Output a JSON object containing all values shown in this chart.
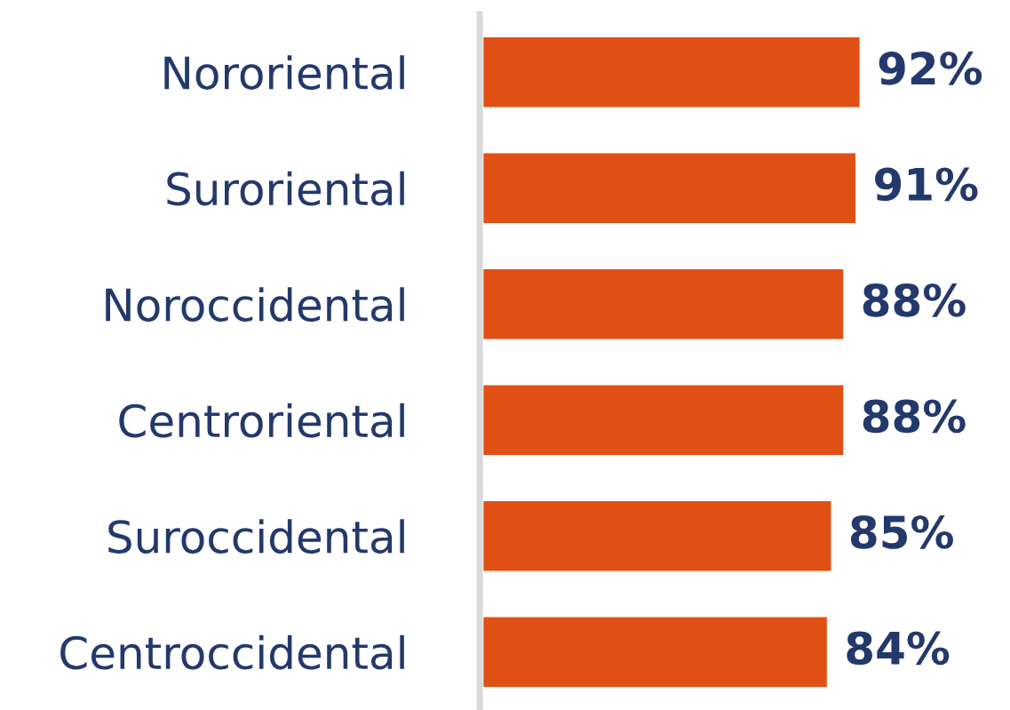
{
  "chart_data": {
    "type": "bar",
    "orientation": "horizontal",
    "categories": [
      "Nororiental",
      "Suroriental",
      "Noroccidental",
      "Centroriental",
      "Suroccidental",
      "Centroccidental"
    ],
    "values": [
      92,
      91,
      88,
      88,
      85,
      84
    ],
    "color": "#e05015",
    "value_labels": [
      "92%",
      "91%",
      "88%",
      "88%",
      "85%",
      "84%"
    ],
    "tick_labels": "y",
    "grid": false,
    "legend": false
  }
}
